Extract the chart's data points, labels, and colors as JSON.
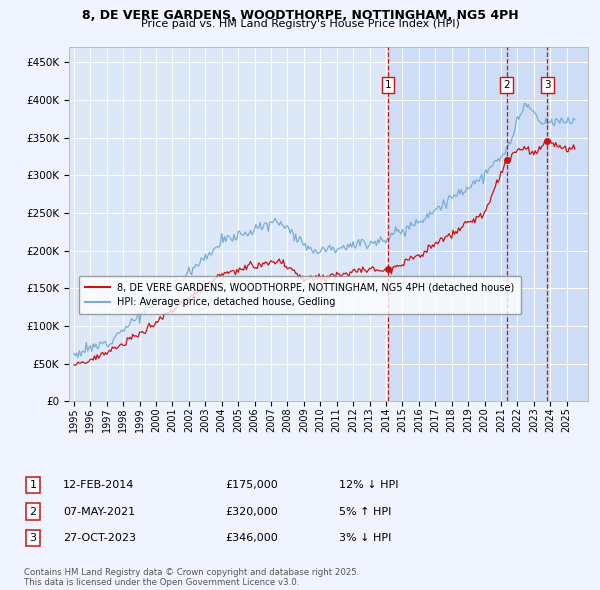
{
  "title_line1": "8, DE VERE GARDENS, WOODTHORPE, NOTTINGHAM, NG5 4PH",
  "title_line2": "Price paid vs. HM Land Registry's House Price Index (HPI)",
  "background_color": "#f0f4ff",
  "plot_bg_color": "#dce8f8",
  "shaded_bg_color": "#ccddf5",
  "grid_color": "#ffffff",
  "hpi_color": "#7aadd4",
  "price_color": "#cc1111",
  "dashed_color": "#cc1111",
  "ylim": [
    0,
    470000
  ],
  "yticks": [
    0,
    50000,
    100000,
    150000,
    200000,
    250000,
    300000,
    350000,
    400000,
    450000
  ],
  "xlim_start": 1994.7,
  "xlim_end": 2026.3,
  "shade_start": 2014.12,
  "transactions": [
    {
      "num": 1,
      "date": "12-FEB-2014",
      "price": 175000,
      "pct": "12%",
      "dir": "↓",
      "x": 2014.12
    },
    {
      "num": 2,
      "date": "07-MAY-2021",
      "price": 320000,
      "pct": "5%",
      "dir": "↑",
      "x": 2021.36
    },
    {
      "num": 3,
      "date": "27-OCT-2023",
      "price": 346000,
      "pct": "3%",
      "dir": "↓",
      "x": 2023.82
    }
  ],
  "legend_label_price": "8, DE VERE GARDENS, WOODTHORPE, NOTTINGHAM, NG5 4PH (detached house)",
  "legend_label_hpi": "HPI: Average price, detached house, Gedling",
  "footnote": "Contains HM Land Registry data © Crown copyright and database right 2025.\nThis data is licensed under the Open Government Licence v3.0.",
  "xticks": [
    1995,
    1996,
    1997,
    1998,
    1999,
    2000,
    2001,
    2002,
    2003,
    2004,
    2005,
    2006,
    2007,
    2008,
    2009,
    2010,
    2011,
    2012,
    2013,
    2014,
    2015,
    2016,
    2017,
    2018,
    2019,
    2020,
    2021,
    2022,
    2023,
    2024,
    2025
  ]
}
